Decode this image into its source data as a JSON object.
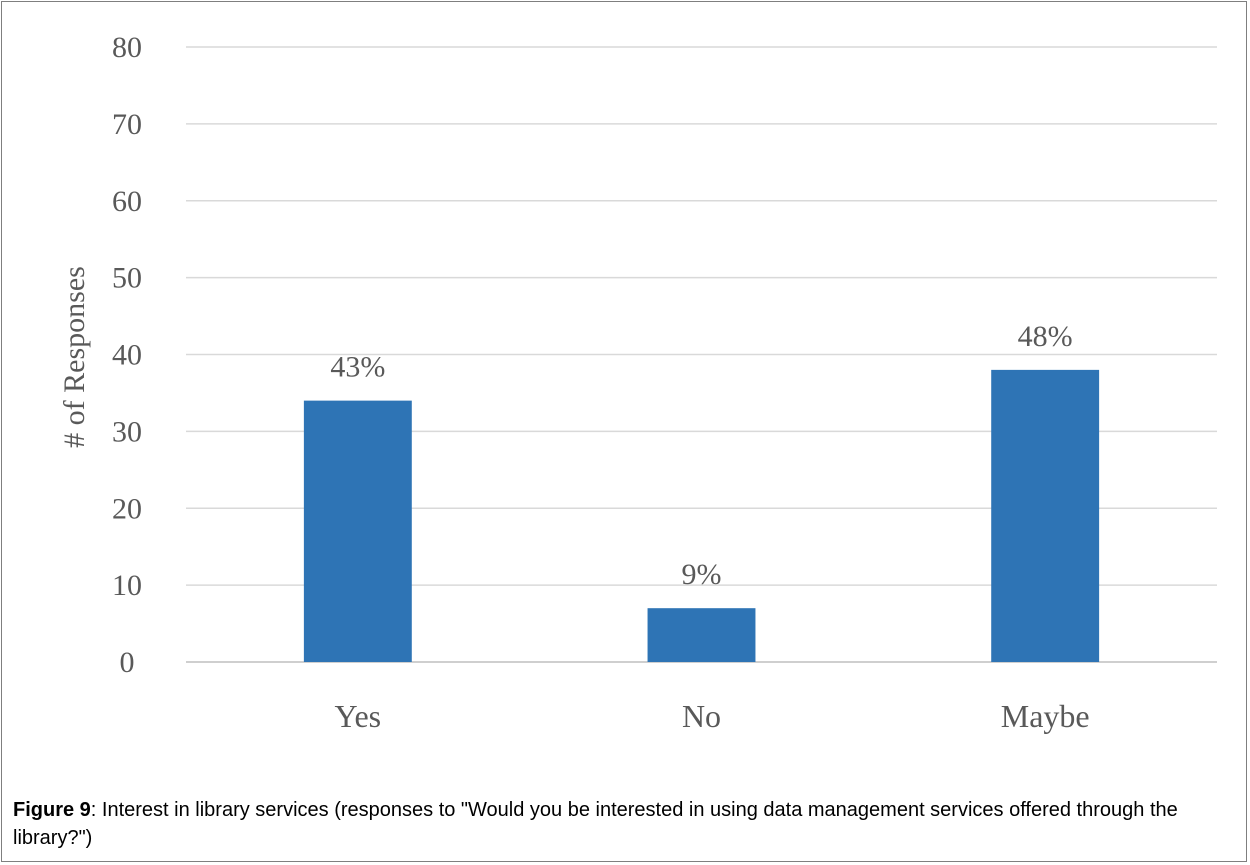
{
  "chart_data": {
    "type": "bar",
    "categories": [
      "Yes",
      "No",
      "Maybe"
    ],
    "values": [
      34,
      7,
      38
    ],
    "data_labels": [
      "43%",
      "9%",
      "48%"
    ],
    "ylabel": "# of Responses",
    "xlabel": "",
    "ylim": [
      0,
      80
    ],
    "yticks": [
      "0",
      "10",
      "20",
      "30",
      "40",
      "50",
      "60",
      "70",
      "80"
    ],
    "grid": true,
    "legend": "none",
    "bar_color": "#2E74B5",
    "grid_color": "#D9D9D9",
    "axis_line_color": "#BFBFBF",
    "text_color": "#595959"
  },
  "caption": {
    "label": "Figure 9",
    "text": ": Interest in library services (responses to \"Would you be interested in using data management services offered through the library?\")"
  }
}
